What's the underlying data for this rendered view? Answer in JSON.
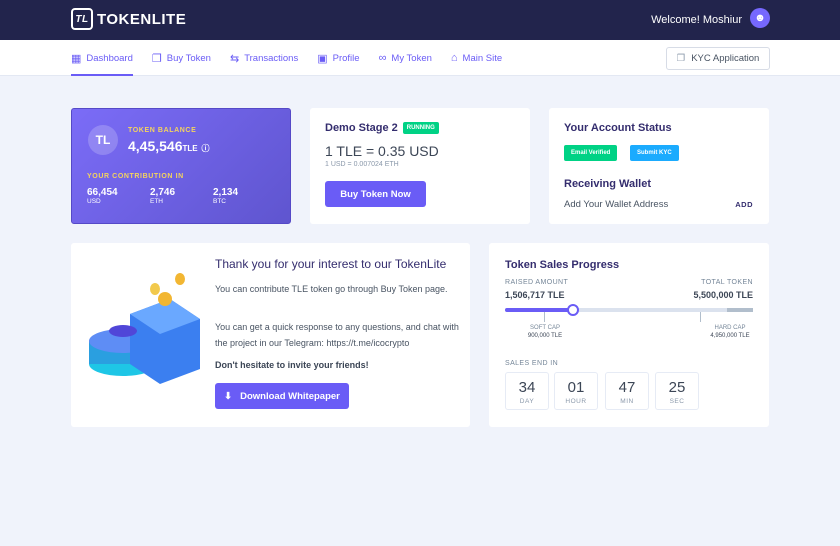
{
  "header": {
    "brand": "TOKENLITE",
    "welcome": "Welcome! Moshiur"
  },
  "nav": {
    "items": [
      {
        "label": "Dashboard",
        "icon": "grid-icon"
      },
      {
        "label": "Buy Token",
        "icon": "coins-icon"
      },
      {
        "label": "Transactions",
        "icon": "swap-icon"
      },
      {
        "label": "Profile",
        "icon": "user-card-icon"
      },
      {
        "label": "My Token",
        "icon": "token-icon"
      },
      {
        "label": "Main Site",
        "icon": "home-icon"
      }
    ],
    "kyc": "KYC Application"
  },
  "balance": {
    "label": "TOKEN BALANCE",
    "amount": "4,45,546",
    "unit": "TLE",
    "contribution_label": "YOUR CONTRIBUTION IN",
    "contributions": [
      {
        "value": "66,454",
        "unit": "USD"
      },
      {
        "value": "2,746",
        "unit": "ETH"
      },
      {
        "value": "2,134",
        "unit": "BTC"
      }
    ]
  },
  "stage": {
    "title": "Demo Stage 2",
    "status": "RUNNING",
    "price": "1 TLE = 0.35 USD",
    "rate": "1 USD = 0.007024 ETH",
    "button": "Buy Token Now"
  },
  "account": {
    "title": "Your Account Status",
    "email_badge": "Email Verified",
    "kyc_badge": "Submit KYC",
    "wallet_title": "Receiving Wallet",
    "wallet_text": "Add Your Wallet Address",
    "add": "ADD"
  },
  "info": {
    "title": "Thank you for your interest to our TokenLite",
    "p1": "You can contribute TLE token go through Buy Token page.",
    "p2": "You can get a quick response to any questions, and chat with the project in our Telegram: https://t.me/icocrypto",
    "p3": "Don't hesitate to invite your friends!",
    "button": "Download Whitepaper"
  },
  "progress": {
    "title": "Token Sales Progress",
    "raised_label": "RAISED AMOUNT",
    "raised": "1,506,717 TLE",
    "total_label": "TOTAL TOKEN",
    "total": "5,500,000 TLE",
    "percent": 27.4,
    "soft_label": "SOFT CAP",
    "soft": "900,000 TLE",
    "hard_label": "HARD CAP",
    "hard": "4,950,000 TLE",
    "ends_label": "SALES END IN",
    "countdown": [
      {
        "n": "34",
        "u": "DAY"
      },
      {
        "n": "01",
        "u": "HOUR"
      },
      {
        "n": "47",
        "u": "MIN"
      },
      {
        "n": "25",
        "u": "SEC"
      }
    ]
  },
  "colors": {
    "accent": "#6a5cf6",
    "header": "#22244c",
    "success": "#00d285",
    "info": "#1babfe"
  }
}
